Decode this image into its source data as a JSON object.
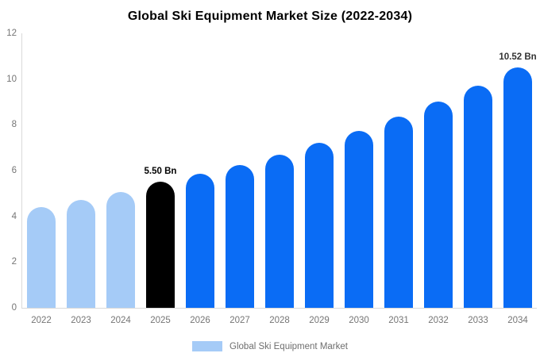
{
  "chart_data": {
    "type": "bar",
    "title": "Global Ski Equipment Market Size (2022-2034)",
    "categories": [
      "2022",
      "2023",
      "2024",
      "2025",
      "2026",
      "2027",
      "2028",
      "2029",
      "2030",
      "2031",
      "2032",
      "2033",
      "2034"
    ],
    "values": [
      4.41,
      4.73,
      5.06,
      5.5,
      5.85,
      6.24,
      6.7,
      7.23,
      7.75,
      8.36,
      9.03,
      9.71,
      10.52
    ],
    "unit": "Bn",
    "xlabel": "",
    "ylabel": "",
    "ylim": [
      0,
      12
    ],
    "yticks": [
      0,
      2,
      4,
      6,
      8,
      10,
      12
    ],
    "grid": false,
    "legend_position": "bottom",
    "bar_colors": [
      "light",
      "light",
      "light",
      "black",
      "blue",
      "blue",
      "blue",
      "blue",
      "blue",
      "blue",
      "blue",
      "blue",
      "blue"
    ],
    "palette": {
      "light": "#a5cbf7",
      "black": "#000000",
      "blue": "#0a6cf5"
    },
    "annotations": [
      {
        "index": 3,
        "text": "5.50 Bn",
        "color": "#000000"
      },
      {
        "index": 12,
        "text": "10.52 Bn",
        "color": "#333333"
      }
    ]
  },
  "legend": {
    "label": "Global Ski Equipment Market",
    "swatch_color": "#a5cbf7"
  },
  "colors": {
    "axis_line": "#d9d9d9",
    "tick_text": "#757575",
    "legend_text": "#6e6e6e",
    "background": "#ffffff"
  }
}
